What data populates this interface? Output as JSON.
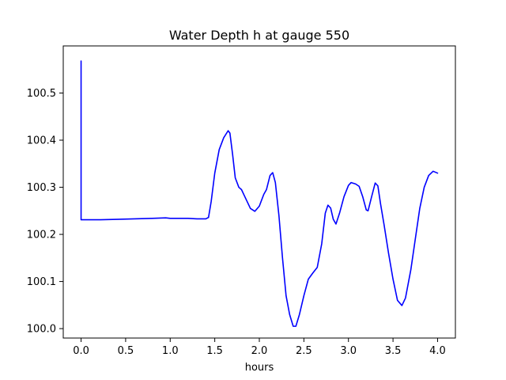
{
  "chart_data": {
    "type": "line",
    "title": "Water Depth h at gauge 550",
    "xlabel": "hours",
    "ylabel": "",
    "xlim": [
      -0.2,
      4.2
    ],
    "ylim": [
      99.98,
      100.6
    ],
    "grid": false,
    "x_ticks": [
      0.0,
      0.5,
      1.0,
      1.5,
      2.0,
      2.5,
      3.0,
      3.5,
      4.0
    ],
    "x_tick_labels": [
      "0.0",
      "0.5",
      "1.0",
      "1.5",
      "2.0",
      "2.5",
      "3.0",
      "3.5",
      "4.0"
    ],
    "y_ticks": [
      100.0,
      100.1,
      100.2,
      100.3,
      100.4,
      100.5
    ],
    "y_tick_labels": [
      "100.0",
      "100.1",
      "100.2",
      "100.3",
      "100.4",
      "100.5"
    ],
    "series": [
      {
        "color": "#0000ff",
        "points": [
          [
            0.0,
            100.568
          ],
          [
            0.0,
            100.231
          ],
          [
            0.05,
            100.231
          ],
          [
            0.2,
            100.231
          ],
          [
            0.4,
            100.232
          ],
          [
            0.6,
            100.233
          ],
          [
            0.8,
            100.234
          ],
          [
            0.95,
            100.235
          ],
          [
            1.0,
            100.234
          ],
          [
            1.2,
            100.234
          ],
          [
            1.3,
            100.233
          ],
          [
            1.4,
            100.233
          ],
          [
            1.43,
            100.236
          ],
          [
            1.46,
            100.27
          ],
          [
            1.5,
            100.33
          ],
          [
            1.55,
            100.38
          ],
          [
            1.6,
            100.405
          ],
          [
            1.65,
            100.42
          ],
          [
            1.67,
            100.415
          ],
          [
            1.7,
            100.37
          ],
          [
            1.73,
            100.32
          ],
          [
            1.77,
            100.3
          ],
          [
            1.8,
            100.295
          ],
          [
            1.85,
            100.275
          ],
          [
            1.9,
            100.255
          ],
          [
            1.95,
            100.249
          ],
          [
            2.0,
            100.26
          ],
          [
            2.05,
            100.285
          ],
          [
            2.08,
            100.295
          ],
          [
            2.12,
            100.325
          ],
          [
            2.15,
            100.331
          ],
          [
            2.18,
            100.31
          ],
          [
            2.22,
            100.24
          ],
          [
            2.26,
            100.15
          ],
          [
            2.3,
            100.07
          ],
          [
            2.34,
            100.03
          ],
          [
            2.38,
            100.005
          ],
          [
            2.41,
            100.005
          ],
          [
            2.45,
            100.03
          ],
          [
            2.5,
            100.07
          ],
          [
            2.55,
            100.105
          ],
          [
            2.6,
            100.118
          ],
          [
            2.65,
            100.13
          ],
          [
            2.7,
            100.18
          ],
          [
            2.74,
            100.245
          ],
          [
            2.77,
            100.262
          ],
          [
            2.8,
            100.256
          ],
          [
            2.83,
            100.232
          ],
          [
            2.86,
            100.222
          ],
          [
            2.9,
            100.245
          ],
          [
            2.95,
            100.28
          ],
          [
            3.0,
            100.304
          ],
          [
            3.03,
            100.31
          ],
          [
            3.08,
            100.307
          ],
          [
            3.12,
            100.302
          ],
          [
            3.16,
            100.28
          ],
          [
            3.2,
            100.252
          ],
          [
            3.22,
            100.25
          ],
          [
            3.26,
            100.28
          ],
          [
            3.3,
            100.309
          ],
          [
            3.33,
            100.303
          ],
          [
            3.36,
            100.265
          ],
          [
            3.4,
            100.22
          ],
          [
            3.45,
            100.16
          ],
          [
            3.5,
            100.105
          ],
          [
            3.55,
            100.06
          ],
          [
            3.6,
            100.049
          ],
          [
            3.64,
            100.065
          ],
          [
            3.7,
            100.125
          ],
          [
            3.75,
            100.19
          ],
          [
            3.8,
            100.255
          ],
          [
            3.85,
            100.3
          ],
          [
            3.9,
            100.325
          ],
          [
            3.95,
            100.334
          ],
          [
            4.0,
            100.33
          ]
        ]
      }
    ]
  }
}
